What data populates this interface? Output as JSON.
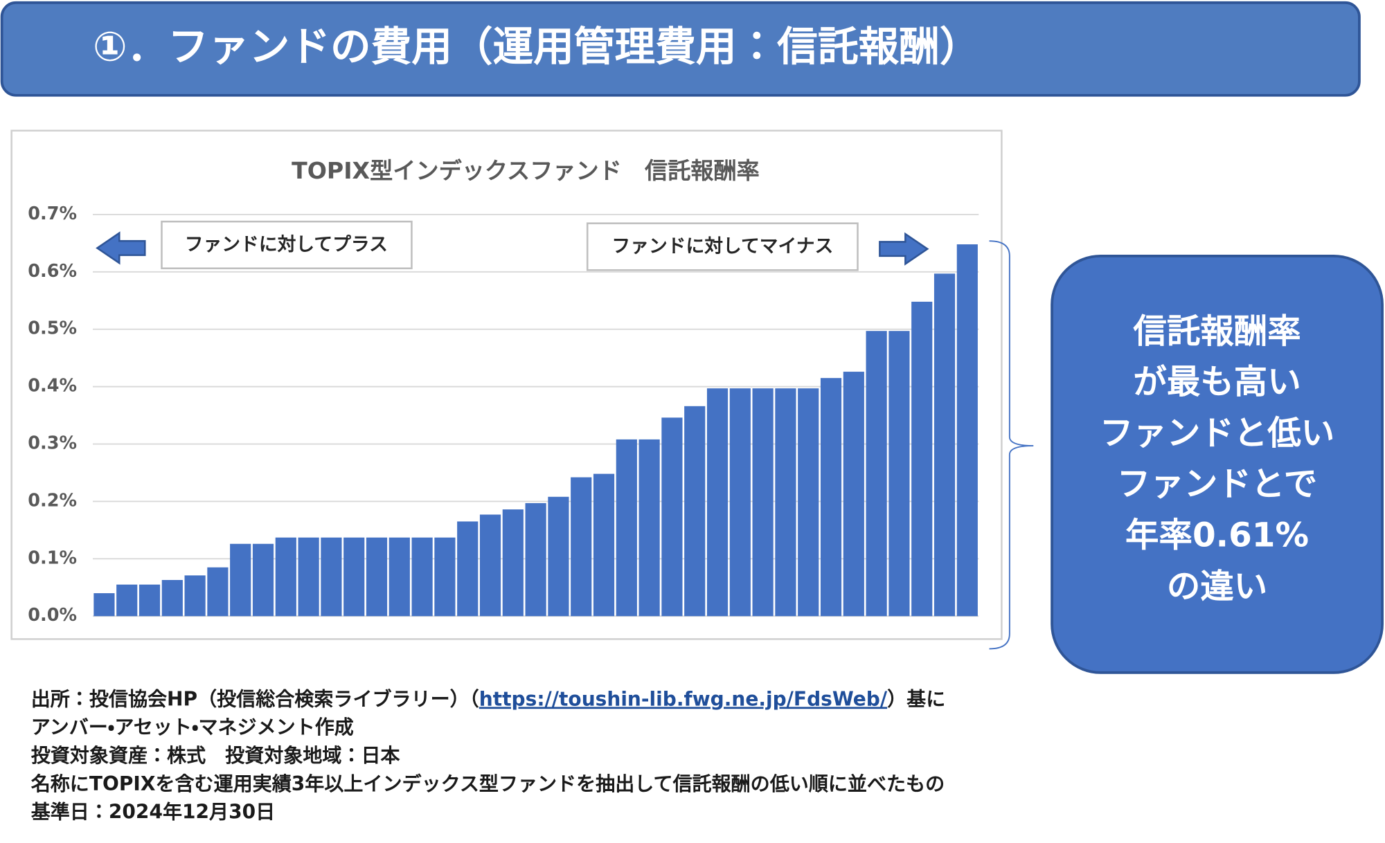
{
  "header": {
    "title": "①．ファンドの費用（運用管理費用：信託報酬）"
  },
  "chart_data": {
    "type": "bar",
    "title": "TOPIX型インデックスファンド　信託報酬率",
    "categories": [
      null,
      null,
      null,
      null,
      null,
      null,
      null,
      null,
      null,
      null,
      null,
      null,
      null,
      null,
      null,
      null,
      null,
      null,
      null,
      null,
      null,
      null,
      null,
      null,
      null,
      null,
      null,
      null,
      null,
      null,
      null,
      null,
      null,
      null,
      null,
      null,
      null,
      null,
      null
    ],
    "values": [
      0.04,
      0.055,
      0.055,
      0.063,
      0.071,
      0.085,
      0.126,
      0.126,
      0.137,
      0.137,
      0.137,
      0.137,
      0.137,
      0.137,
      0.137,
      0.137,
      0.165,
      0.177,
      0.186,
      0.197,
      0.208,
      0.242,
      0.248,
      0.308,
      0.308,
      0.346,
      0.366,
      0.397,
      0.397,
      0.397,
      0.397,
      0.397,
      0.415,
      0.426,
      0.497,
      0.497,
      0.548,
      0.597,
      0.648
    ],
    "color": "#4472c4",
    "ylim": [
      0,
      0.7
    ],
    "yticks": [
      {
        "value": 0,
        "label": "0.0%"
      },
      {
        "value": 0.1,
        "label": "0.1%"
      },
      {
        "value": 0.2,
        "label": "0.2%"
      },
      {
        "value": 0.3,
        "label": "0.3%"
      },
      {
        "value": 0.4,
        "label": "0.4%"
      },
      {
        "value": 0.5,
        "label": "0.5%"
      },
      {
        "value": 0.6,
        "label": "0.6%"
      },
      {
        "value": 0.7,
        "label": "0.7%"
      }
    ],
    "grid": true,
    "annotations": [
      "ファンドに対してプラス",
      "ファンドに対してマイナス"
    ]
  },
  "callout": {
    "lines": [
      "信託報酬率",
      "が最も高い",
      "ファンドと低い",
      "ファンドとで",
      "年率0.61%",
      "の違い"
    ]
  },
  "footnotes": {
    "source": [
      "出所：投信協会HP（投信総合検索ライブラリー）（",
      "https://toushin-lib.fwg.ne.jp/FdsWeb/",
      "）基に"
    ],
    "lines": [
      "アンバー・アセット・マネジメント作成",
      "投資対象資産：株式　投資対象地域：日本",
      "名称にTOPIXを含む運用実績3年以上インデックス型ファンドを抽出して信託報酬の低い順に並べたもの",
      "基準日：2024年12月30日"
    ]
  }
}
